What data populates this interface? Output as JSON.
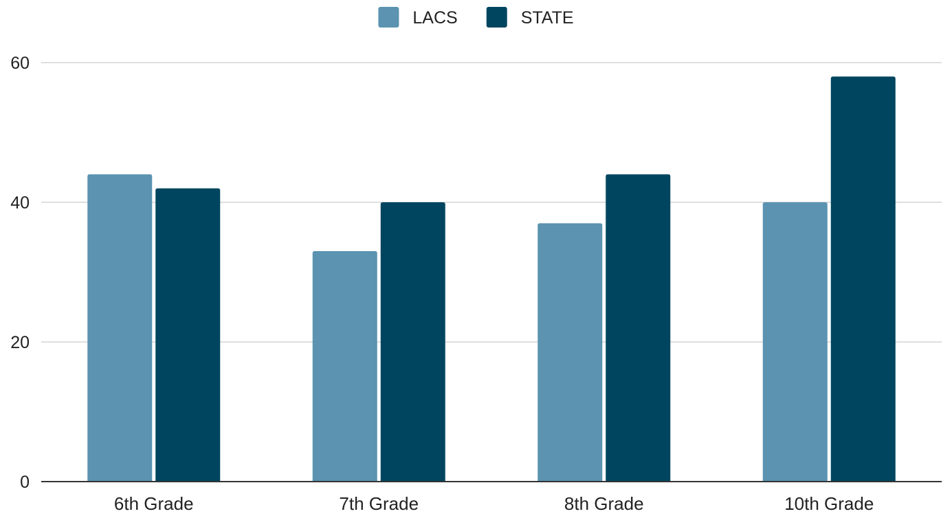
{
  "chart_data": {
    "type": "bar",
    "title": "",
    "xlabel": "",
    "ylabel": "",
    "categories": [
      "6th Grade",
      "7th Grade",
      "8th Grade",
      "10th Grade"
    ],
    "series": [
      {
        "name": "LACS",
        "color": "#5b93b1",
        "values": [
          44,
          33,
          37,
          40
        ]
      },
      {
        "name": "STATE",
        "color": "#00455f",
        "values": [
          42,
          40,
          44,
          58
        ]
      }
    ],
    "ylim": [
      0,
      60
    ],
    "yticks": [
      0,
      20,
      40,
      60
    ],
    "grid": true,
    "legend": "top-center",
    "colors": {
      "grid": "#d4d4d4",
      "axis": "#333333",
      "text": "#222222"
    }
  }
}
